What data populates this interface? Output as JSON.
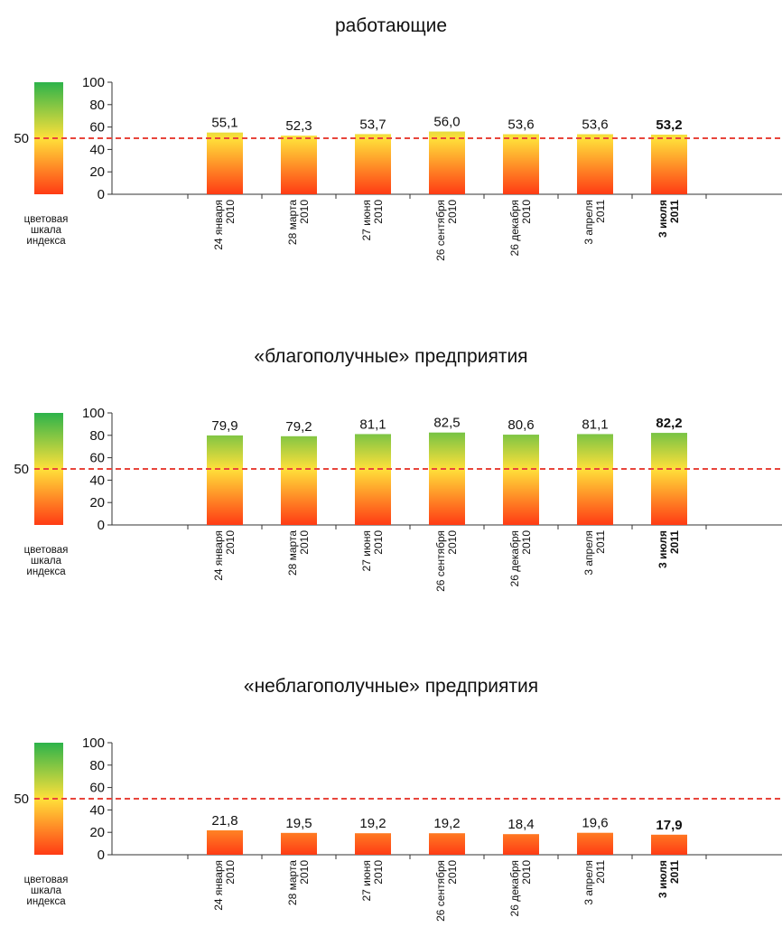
{
  "reference": {
    "value": 50,
    "label": "50"
  },
  "scale_caption": [
    "цветовая",
    "шкала",
    "индекса"
  ],
  "colors": {
    "low": "#ff3b14",
    "mid": "#ffe03a",
    "high": "#2db34a",
    "reference_line": "#e8453c",
    "axis": "#333333"
  },
  "chart_data": [
    {
      "type": "bar",
      "title": "работающие",
      "categories": [
        {
          "line1": "24 января",
          "line2": "2010"
        },
        {
          "line1": "28 марта",
          "line2": "2010"
        },
        {
          "line1": "27 июня",
          "line2": "2010"
        },
        {
          "line1": "26 сентября",
          "line2": "2010"
        },
        {
          "line1": "26 декабря",
          "line2": "2010"
        },
        {
          "line1": "3 апреля",
          "line2": "2011"
        },
        {
          "line1": "3 июля",
          "line2": "2011"
        }
      ],
      "values": [
        55.1,
        52.3,
        53.7,
        56.0,
        53.6,
        53.6,
        53.2
      ],
      "value_labels": [
        "55,1",
        "52,3",
        "53,7",
        "56,0",
        "53,6",
        "53,6",
        "53,2"
      ],
      "highlight_index": 6,
      "ylim": [
        0,
        100
      ],
      "yticks": [
        0,
        20,
        40,
        60,
        80,
        100
      ],
      "ytick_labels": [
        "0",
        "20",
        "40",
        "60",
        "80",
        "100"
      ]
    },
    {
      "type": "bar",
      "title": "«благополучные» предприятия",
      "categories": [
        {
          "line1": "24 января",
          "line2": "2010"
        },
        {
          "line1": "28 марта",
          "line2": "2010"
        },
        {
          "line1": "27 июня",
          "line2": "2010"
        },
        {
          "line1": "26 сентября",
          "line2": "2010"
        },
        {
          "line1": "26 декабря",
          "line2": "2010"
        },
        {
          "line1": "3 апреля",
          "line2": "2011"
        },
        {
          "line1": "3 июля",
          "line2": "2011"
        }
      ],
      "values": [
        79.9,
        79.2,
        81.1,
        82.5,
        80.6,
        81.1,
        82.2
      ],
      "value_labels": [
        "79,9",
        "79,2",
        "81,1",
        "82,5",
        "80,6",
        "81,1",
        "82,2"
      ],
      "highlight_index": 6,
      "ylim": [
        0,
        100
      ],
      "yticks": [
        0,
        20,
        40,
        60,
        80,
        100
      ],
      "ytick_labels": [
        "0",
        "20",
        "40",
        "60",
        "80",
        "100"
      ]
    },
    {
      "type": "bar",
      "title": "«неблагополучные» предприятия",
      "categories": [
        {
          "line1": "24 января",
          "line2": "2010"
        },
        {
          "line1": "28 марта",
          "line2": "2010"
        },
        {
          "line1": "27 июня",
          "line2": "2010"
        },
        {
          "line1": "26 сентября",
          "line2": "2010"
        },
        {
          "line1": "26 декабря",
          "line2": "2010"
        },
        {
          "line1": "3 апреля",
          "line2": "2011"
        },
        {
          "line1": "3 июля",
          "line2": "2011"
        }
      ],
      "values": [
        21.8,
        19.5,
        19.2,
        19.2,
        18.4,
        19.6,
        17.9
      ],
      "value_labels": [
        "21,8",
        "19,5",
        "19,2",
        "19,2",
        "18,4",
        "19,6",
        "17,9"
      ],
      "highlight_index": 6,
      "ylim": [
        0,
        100
      ],
      "yticks": [
        0,
        20,
        40,
        60,
        80,
        100
      ],
      "ytick_labels": [
        "0",
        "20",
        "40",
        "60",
        "80",
        "100"
      ]
    }
  ]
}
